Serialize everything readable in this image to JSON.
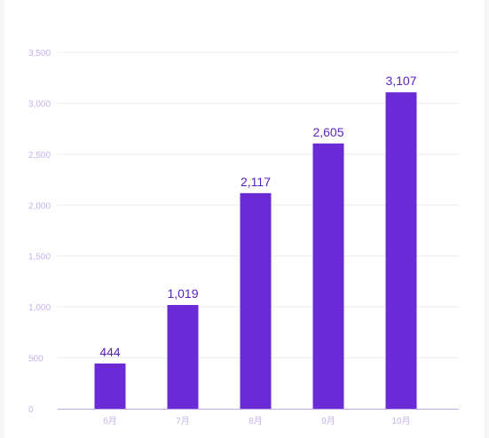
{
  "chart_data": {
    "type": "bar",
    "categories": [
      "6月",
      "7月",
      "8月",
      "9月",
      "10月"
    ],
    "values": [
      444,
      1019,
      2117,
      2605,
      3107
    ],
    "value_labels": [
      "444",
      "1,019",
      "2,117",
      "2,605",
      "3,107"
    ],
    "title": "",
    "xlabel": "",
    "ylabel": "",
    "ylim": [
      0,
      3500
    ],
    "y_ticks": [
      0,
      500,
      1000,
      1500,
      2000,
      2500,
      3000,
      3500
    ],
    "y_tick_labels": [
      "0",
      "500",
      "1,000",
      "1,500",
      "2,000",
      "2,500",
      "3,000",
      "3,500"
    ],
    "grid": true,
    "legend": "none",
    "colors": {
      "bar": "#6a2bd6",
      "data_label": "#5a23c0",
      "tick_label": "#c6b3ec",
      "grid": "#ececf1",
      "axis": "#bfa9ea"
    }
  }
}
